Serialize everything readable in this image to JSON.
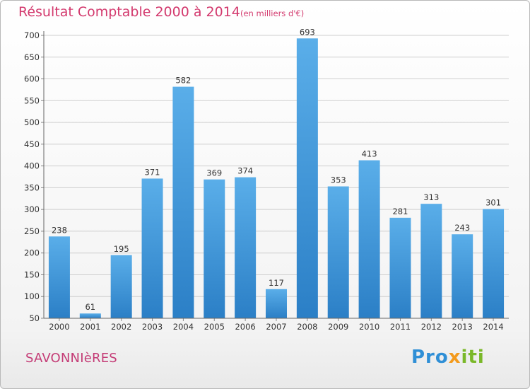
{
  "header": {
    "title": "Résultat Comptable 2000 à 2014",
    "subtitle": "(en milliers d'€)"
  },
  "commune": "SAVONNIèRES",
  "logo": {
    "text": "Proxiti"
  },
  "colors": {
    "bar_top": "#5aaee9",
    "bar_bottom": "#2b7fc6",
    "accent": "#d33a6e",
    "grid": "#cfcfcf",
    "axis_text": "#333333"
  },
  "chart_data": {
    "type": "bar",
    "title": "Résultat Comptable 2000 à 2014",
    "subtitle": "(en milliers d'€)",
    "xlabel": "",
    "ylabel": "",
    "categories": [
      "2000",
      "2001",
      "2002",
      "2003",
      "2004",
      "2005",
      "2006",
      "2007",
      "2008",
      "2009",
      "2010",
      "2011",
      "2012",
      "2013",
      "2014"
    ],
    "values": [
      238,
      61,
      195,
      371,
      582,
      369,
      374,
      117,
      693,
      353,
      413,
      281,
      313,
      243,
      301
    ],
    "ylim": [
      50,
      700
    ],
    "yticks": [
      50,
      100,
      150,
      200,
      250,
      300,
      350,
      400,
      450,
      500,
      550,
      600,
      650,
      700
    ],
    "grid": true
  }
}
